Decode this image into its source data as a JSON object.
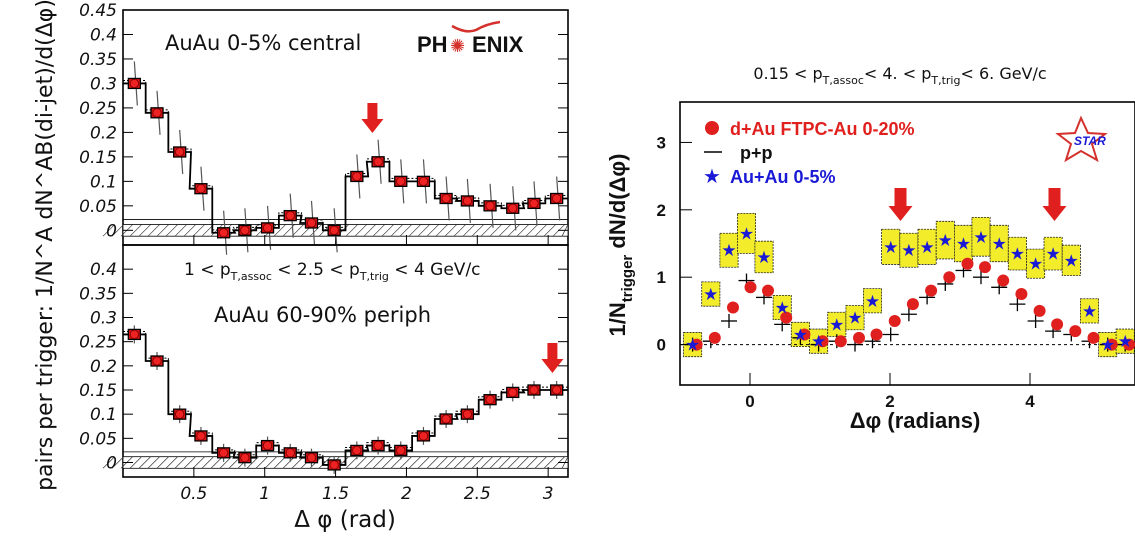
{
  "chart_data": [
    {
      "type": "scatter",
      "panel": "top-left",
      "annotation": "AuAu 0-5% central",
      "logo": "PHENIX",
      "ylabel": "pairs per trigger: 1/N^A dN^AB(di-jet)/d(Δφ)",
      "xlabel": "",
      "xlim": [
        0.0,
        3.14
      ],
      "ylim": [
        -0.03,
        0.45
      ],
      "yticks": [
        0,
        0.05,
        0.1,
        0.15,
        0.2,
        0.25,
        0.3,
        0.35,
        0.4,
        0.45
      ],
      "ytick_labels": [
        "0",
        "0.05",
        "0.1",
        "0.15",
        "0.2",
        "0.25",
        "0.3",
        "0.35",
        "0.4",
        "0.45"
      ],
      "arrow_x": 1.76,
      "series": [
        {
          "x": [
            0.08,
            0.24,
            0.4,
            0.55,
            0.71,
            0.86,
            1.02,
            1.18,
            1.33,
            1.49,
            1.65,
            1.8,
            1.96,
            2.12,
            2.28,
            2.43,
            2.59,
            2.75,
            2.9,
            3.06
          ],
          "values": [
            0.3,
            0.24,
            0.16,
            0.085,
            -0.005,
            0.0,
            0.005,
            0.03,
            0.015,
            0.0,
            0.11,
            0.14,
            0.1,
            0.1,
            0.065,
            0.06,
            0.05,
            0.045,
            0.055,
            0.065
          ]
        }
      ]
    },
    {
      "type": "scatter",
      "panel": "bottom-left",
      "annotation_line1": "1 < p",
      "annotation_line1_sub": "T,assoc",
      "annotation_line1_mid": " < 2.5 < p",
      "annotation_line1_sub2": "T,trig",
      "annotation_line1_end": " < 4 GeV/c",
      "annotation": "AuAu 60-90% periph",
      "xlabel": "Δ φ (rad)",
      "xlim": [
        0.0,
        3.14
      ],
      "ylim": [
        -0.03,
        0.45
      ],
      "xticks": [
        0.5,
        1,
        1.5,
        2,
        2.5,
        3
      ],
      "xtick_labels": [
        "0.5",
        "1",
        "1.5",
        "2",
        "2.5",
        "3"
      ],
      "yticks": [
        0,
        0.05,
        0.1,
        0.15,
        0.2,
        0.25,
        0.3,
        0.35,
        0.4
      ],
      "ytick_labels": [
        "0",
        "0.05",
        "0.1",
        "0.15",
        "0.2",
        "0.25",
        "0.3",
        "0.35",
        "0.4"
      ],
      "arrow_x": 3.03,
      "series": [
        {
          "x": [
            0.08,
            0.24,
            0.4,
            0.55,
            0.71,
            0.86,
            1.02,
            1.18,
            1.33,
            1.49,
            1.65,
            1.8,
            1.96,
            2.12,
            2.28,
            2.43,
            2.59,
            2.75,
            2.9,
            3.06
          ],
          "values": [
            0.265,
            0.21,
            0.1,
            0.055,
            0.02,
            0.01,
            0.035,
            0.02,
            0.01,
            -0.005,
            0.025,
            0.035,
            0.025,
            0.055,
            0.09,
            0.1,
            0.13,
            0.145,
            0.15,
            0.15
          ]
        }
      ]
    },
    {
      "type": "scatter",
      "panel": "right",
      "title_parts": [
        "0.15 < p",
        "T,assoc",
        "<  4. < p",
        "T,trig",
        "< 6. GeV/c"
      ],
      "xlabel": "Δφ (radians)",
      "ylabel_main": "1/N",
      "ylabel_sub": "trigger",
      "ylabel_end": " dN/d(Δφ)",
      "logo": "STAR",
      "xlim": [
        -1.0,
        5.5
      ],
      "ylim": [
        -0.6,
        3.6
      ],
      "xticks": [
        0,
        2,
        4
      ],
      "xtick_labels": [
        "0",
        "2",
        "4"
      ],
      "yticks": [
        0,
        1,
        2,
        3
      ],
      "ytick_labels": [
        "0",
        "1",
        "2",
        "3"
      ],
      "arrows_x": [
        2.15,
        4.35
      ],
      "legend": [
        "d+Au FTPC-Au 0-20%",
        "p+p",
        "Au+Au 0-5%"
      ],
      "colors": {
        "dAu": "#e0201e",
        "pp": "#000000",
        "AuAu": "#1a1ad6",
        "band": "#f2ec2a"
      },
      "series": [
        {
          "name": "d+Au FTPC-Au 0-20%",
          "x": [
            -0.82,
            -0.56,
            -0.3,
            -0.05,
            0.2,
            0.46,
            0.72,
            0.98,
            1.24,
            1.5,
            1.75,
            2.01,
            2.27,
            2.53,
            2.79,
            3.05,
            3.3,
            3.56,
            3.82,
            4.08,
            4.33,
            4.59,
            4.85,
            5.11,
            5.36
          ],
          "values": [
            0.0,
            0.1,
            0.55,
            0.85,
            0.8,
            0.4,
            0.15,
            0.05,
            0.05,
            0.1,
            0.15,
            0.35,
            0.6,
            0.8,
            1.0,
            1.2,
            1.15,
            0.95,
            0.75,
            0.5,
            0.3,
            0.2,
            0.1,
            0.0,
            0.0
          ]
        },
        {
          "name": "p+p",
          "x": [
            -0.82,
            -0.56,
            -0.3,
            -0.05,
            0.2,
            0.46,
            0.72,
            0.98,
            1.24,
            1.5,
            1.75,
            2.01,
            2.27,
            2.53,
            2.79,
            3.05,
            3.3,
            3.56,
            3.82,
            4.08,
            4.33,
            4.59,
            4.85,
            5.11,
            5.36
          ],
          "values": [
            0.0,
            0.05,
            0.35,
            0.95,
            0.7,
            0.3,
            0.1,
            0.0,
            0.05,
            0.0,
            0.05,
            0.15,
            0.45,
            0.7,
            0.9,
            1.1,
            1.0,
            0.85,
            0.6,
            0.35,
            0.2,
            0.15,
            0.05,
            0.0,
            0.0
          ]
        },
        {
          "name": "Au+Au 0-5%",
          "x": [
            -0.82,
            -0.56,
            -0.3,
            -0.05,
            0.2,
            0.46,
            0.72,
            0.98,
            1.24,
            1.5,
            1.75,
            2.01,
            2.27,
            2.53,
            2.79,
            3.05,
            3.3,
            3.56,
            3.82,
            4.08,
            4.33,
            4.59,
            4.85,
            5.11,
            5.36
          ],
          "values": [
            0.0,
            0.75,
            1.4,
            1.65,
            1.3,
            0.55,
            0.15,
            0.05,
            0.3,
            0.4,
            0.65,
            1.45,
            1.4,
            1.45,
            1.55,
            1.5,
            1.6,
            1.5,
            1.35,
            1.2,
            1.35,
            1.25,
            0.5,
            0.0,
            0.05
          ]
        }
      ]
    }
  ]
}
